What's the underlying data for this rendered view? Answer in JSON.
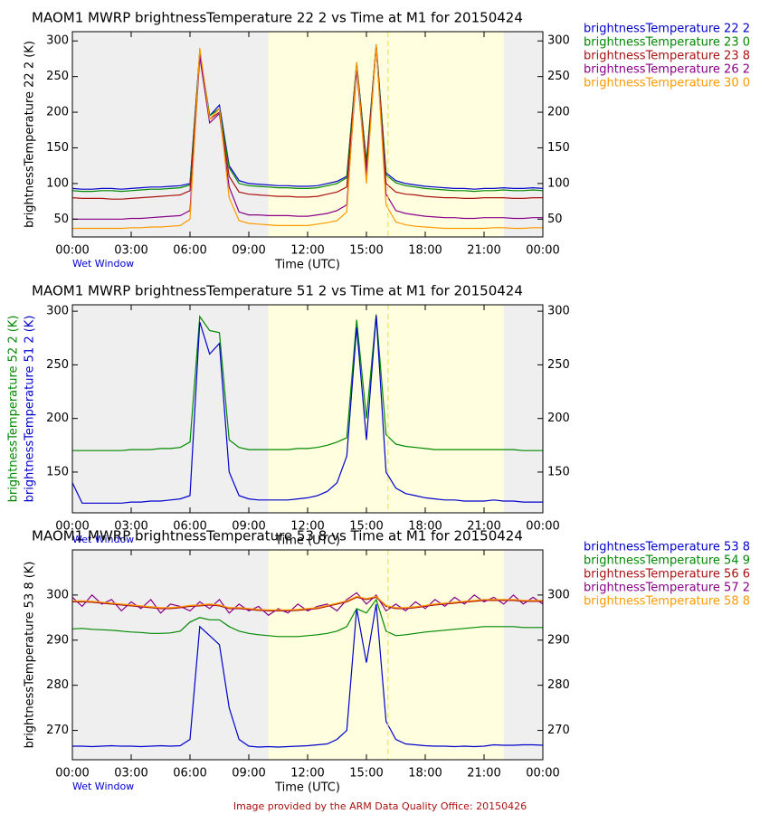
{
  "chart_data": [
    {
      "type": "line",
      "title": "MAOM1 MWRP brightnessTemperature 22 2 vs Time at M1 for 20150424",
      "ylabel": "brightnessTemperature 22 2 (K)",
      "xlabel": "Time (UTC)",
      "note": "Wet Window",
      "legend": true,
      "xlim": [
        0,
        24
      ],
      "xticks": [
        {
          "value": 0,
          "label": "00:00"
        },
        {
          "value": 3,
          "label": "03:00"
        },
        {
          "value": 6,
          "label": "06:00"
        },
        {
          "value": 9,
          "label": "09:00"
        },
        {
          "value": 12,
          "label": "12:00"
        },
        {
          "value": 15,
          "label": "15:00"
        },
        {
          "value": 18,
          "label": "18:00"
        },
        {
          "value": 21,
          "label": "21:00"
        },
        {
          "value": 24,
          "label": "00:00"
        }
      ],
      "ylim": [
        25,
        313
      ],
      "yticks": [
        50,
        100,
        150,
        200,
        250,
        300
      ],
      "shaded_x": [
        10,
        22
      ],
      "vline_x": 16.1,
      "x": [
        0,
        0.5,
        1,
        1.5,
        2,
        2.5,
        3,
        3.5,
        4,
        4.5,
        5,
        5.5,
        6,
        6.5,
        7,
        7.5,
        8,
        8.5,
        9,
        9.5,
        10,
        10.5,
        11,
        11.5,
        12,
        12.5,
        13,
        13.5,
        14,
        14.5,
        15,
        15.5,
        16,
        16.5,
        17,
        17.5,
        18,
        18.5,
        19,
        19.5,
        20,
        20.5,
        21,
        21.5,
        22,
        22.5,
        23,
        23.5,
        24
      ],
      "series": [
        {
          "name": "brightnessTemperature 22 2",
          "color": "#0000cc",
          "values": [
            93,
            92,
            92,
            93,
            93,
            92,
            93,
            94,
            95,
            95,
            96,
            97,
            100,
            285,
            195,
            210,
            125,
            104,
            100,
            99,
            98,
            97,
            97,
            96,
            96,
            97,
            100,
            103,
            110,
            270,
            130,
            295,
            115,
            104,
            100,
            98,
            96,
            95,
            94,
            93,
            93,
            92,
            93,
            93,
            94,
            93,
            93,
            94,
            93
          ]
        },
        {
          "name": "brightnessTemperature 23 0",
          "color": "#008800",
          "values": [
            90,
            89,
            89,
            90,
            90,
            89,
            90,
            91,
            92,
            92,
            93,
            94,
            98,
            285,
            195,
            205,
            122,
            100,
            97,
            96,
            95,
            94,
            94,
            93,
            93,
            94,
            97,
            100,
            108,
            268,
            128,
            294,
            112,
            101,
            97,
            95,
            93,
            92,
            91,
            90,
            90,
            89,
            90,
            90,
            91,
            90,
            90,
            91,
            90
          ]
        },
        {
          "name": "brightnessTemperature 23 8",
          "color": "#aa1111",
          "values": [
            80,
            79,
            79,
            79,
            78,
            78,
            79,
            80,
            81,
            82,
            83,
            84,
            90,
            280,
            190,
            200,
            110,
            88,
            85,
            84,
            83,
            82,
            82,
            81,
            81,
            82,
            85,
            88,
            95,
            265,
            120,
            293,
            100,
            88,
            85,
            84,
            82,
            81,
            80,
            80,
            79,
            79,
            80,
            80,
            80,
            79,
            79,
            80,
            80
          ]
        },
        {
          "name": "brightnessTemperature 26 2",
          "color": "#880088",
          "values": [
            50,
            50,
            50,
            50,
            50,
            50,
            51,
            51,
            52,
            53,
            54,
            55,
            62,
            278,
            185,
            198,
            95,
            60,
            56,
            56,
            55,
            55,
            55,
            54,
            54,
            56,
            58,
            62,
            70,
            260,
            110,
            292,
            85,
            62,
            58,
            56,
            54,
            53,
            52,
            52,
            51,
            51,
            52,
            52,
            52,
            51,
            51,
            52,
            52
          ]
        },
        {
          "name": "brightnessTemperature 30 0",
          "color": "#ff9900",
          "values": [
            37,
            37,
            37,
            37,
            37,
            37,
            38,
            38,
            39,
            39,
            40,
            41,
            50,
            290,
            190,
            205,
            80,
            48,
            44,
            43,
            42,
            41,
            41,
            41,
            41,
            43,
            45,
            48,
            60,
            270,
            100,
            295,
            70,
            46,
            42,
            40,
            39,
            38,
            37,
            37,
            37,
            37,
            37,
            38,
            38,
            37,
            37,
            38,
            38
          ]
        }
      ]
    },
    {
      "type": "line",
      "title": "MAOM1 MWRP brightnessTemperature 51 2 vs Time at M1 for 20150424",
      "ylabels": [
        {
          "text": "brightnessTemperature 52 2 (K)",
          "color": "#008800"
        },
        {
          "text": "brightnessTemperature 51 2 (K)",
          "color": "#0000cc"
        }
      ],
      "xlabel": "Time (UTC)",
      "note": "Wet Window",
      "legend": false,
      "xlim": [
        0,
        24
      ],
      "xticks": [
        {
          "value": 0,
          "label": "00:00"
        },
        {
          "value": 3,
          "label": "03:00"
        },
        {
          "value": 6,
          "label": "06:00"
        },
        {
          "value": 9,
          "label": "09:00"
        },
        {
          "value": 12,
          "label": "12:00"
        },
        {
          "value": 15,
          "label": "15:00"
        },
        {
          "value": 18,
          "label": "18:00"
        },
        {
          "value": 21,
          "label": "21:00"
        },
        {
          "value": 24,
          "label": "00:00"
        }
      ],
      "ylim": [
        112,
        306
      ],
      "yticks": [
        150,
        200,
        250,
        300
      ],
      "shaded_x": [
        10,
        22
      ],
      "vline_x": 16.1,
      "x": [
        0,
        0.5,
        1,
        1.5,
        2,
        2.5,
        3,
        3.5,
        4,
        4.5,
        5,
        5.5,
        6,
        6.5,
        7,
        7.5,
        8,
        8.5,
        9,
        9.5,
        10,
        10.5,
        11,
        11.5,
        12,
        12.5,
        13,
        13.5,
        14,
        14.5,
        15,
        15.5,
        16,
        16.5,
        17,
        17.5,
        18,
        18.5,
        19,
        19.5,
        20,
        20.5,
        21,
        21.5,
        22,
        22.5,
        23,
        23.5,
        24
      ],
      "series": [
        {
          "name": "brightnessTemperature 52 2",
          "color": "#008800",
          "values": [
            170,
            170,
            170,
            170,
            170,
            170,
            171,
            171,
            171,
            172,
            172,
            173,
            178,
            295,
            282,
            280,
            180,
            173,
            171,
            171,
            171,
            171,
            171,
            172,
            172,
            173,
            175,
            178,
            182,
            292,
            200,
            297,
            185,
            176,
            174,
            173,
            172,
            171,
            171,
            171,
            171,
            171,
            171,
            171,
            171,
            171,
            170,
            170,
            170
          ]
        },
        {
          "name": "brightnessTemperature 51 2",
          "color": "#0000cc",
          "values": [
            140,
            121,
            121,
            121,
            121,
            121,
            122,
            122,
            123,
            123,
            124,
            125,
            128,
            290,
            260,
            270,
            150,
            128,
            125,
            124,
            124,
            124,
            124,
            125,
            126,
            128,
            132,
            140,
            165,
            285,
            180,
            296,
            150,
            135,
            130,
            128,
            126,
            125,
            124,
            124,
            123,
            123,
            123,
            124,
            123,
            123,
            122,
            122,
            122
          ]
        }
      ]
    },
    {
      "type": "line",
      "title": "MAOM1 MWRP brightnessTemperature 53 8 vs Time at M1 for 20150424",
      "ylabel": "brightnessTemperature 53 8 (K)",
      "xlabel": "Time (UTC)",
      "note": "Wet Window",
      "legend": true,
      "xlim": [
        0,
        24
      ],
      "xticks": [
        {
          "value": 0,
          "label": "00:00"
        },
        {
          "value": 3,
          "label": "03:00"
        },
        {
          "value": 6,
          "label": "06:00"
        },
        {
          "value": 9,
          "label": "09:00"
        },
        {
          "value": 12,
          "label": "12:00"
        },
        {
          "value": 15,
          "label": "15:00"
        },
        {
          "value": 18,
          "label": "18:00"
        },
        {
          "value": 21,
          "label": "21:00"
        },
        {
          "value": 24,
          "label": "00:00"
        }
      ],
      "ylim": [
        263.5,
        310
      ],
      "yticks": [
        270,
        280,
        290,
        300
      ],
      "shaded_x": [
        10,
        22
      ],
      "vline_x": 16.1,
      "x": [
        0,
        0.5,
        1,
        1.5,
        2,
        2.5,
        3,
        3.5,
        4,
        4.5,
        5,
        5.5,
        6,
        6.5,
        7,
        7.5,
        8,
        8.5,
        9,
        9.5,
        10,
        10.5,
        11,
        11.5,
        12,
        12.5,
        13,
        13.5,
        14,
        14.5,
        15,
        15.5,
        16,
        16.5,
        17,
        17.5,
        18,
        18.5,
        19,
        19.5,
        20,
        20.5,
        21,
        21.5,
        22,
        22.5,
        23,
        23.5,
        24
      ],
      "series": [
        {
          "name": "brightnessTemperature 53 8",
          "color": "#0000cc",
          "values": [
            266.5,
            266.5,
            266.4,
            266.5,
            266.6,
            266.5,
            266.5,
            266.4,
            266.5,
            266.6,
            266.5,
            266.6,
            268,
            293,
            291,
            289,
            275,
            268,
            266.5,
            266.3,
            266.4,
            266.3,
            266.4,
            266.5,
            266.6,
            266.8,
            267,
            268,
            270,
            297,
            285,
            298,
            272,
            268,
            267,
            266.8,
            266.6,
            266.5,
            266.5,
            266.4,
            266.5,
            266.4,
            266.5,
            266.8,
            266.7,
            266.7,
            266.8,
            266.8,
            266.7
          ]
        },
        {
          "name": "brightnessTemperature 54 9",
          "color": "#008800",
          "values": [
            292.5,
            292.6,
            292.4,
            292.3,
            292.2,
            292,
            291.8,
            291.7,
            291.5,
            291.5,
            291.6,
            292,
            294,
            295,
            294.5,
            294.5,
            293,
            292,
            291.5,
            291.2,
            291,
            290.8,
            290.8,
            290.8,
            291,
            291.2,
            291.5,
            292,
            293,
            297,
            296,
            299,
            292,
            291,
            291.2,
            291.5,
            291.8,
            292,
            292.2,
            292.4,
            292.6,
            292.8,
            293,
            293,
            293,
            293,
            292.8,
            292.8,
            292.8
          ]
        },
        {
          "name": "brightnessTemperature 56 6",
          "color": "#aa1111",
          "values": [
            298.5,
            298.5,
            298.4,
            298.2,
            298,
            297.8,
            297.6,
            297.4,
            297.2,
            297,
            297,
            297.2,
            297.5,
            297.6,
            297.8,
            297.6,
            297,
            297,
            296.8,
            296.6,
            296.5,
            296.5,
            296.5,
            296.6,
            296.8,
            297,
            297.5,
            298,
            298.5,
            299.5,
            299,
            299.5,
            297.5,
            297,
            297,
            297.2,
            297.5,
            297.8,
            298,
            298.2,
            298.4,
            298.6,
            298.8,
            298.8,
            298.8,
            298.8,
            298.6,
            298.6,
            298.6
          ]
        },
        {
          "name": "brightnessTemperature 57 2",
          "color": "#880088",
          "values": [
            299.5,
            297.5,
            300,
            298,
            299,
            296.5,
            298.5,
            297,
            299,
            296,
            298,
            297.5,
            296.5,
            298.5,
            297,
            299,
            296,
            298,
            296.5,
            297.5,
            295.5,
            297,
            296,
            298,
            296.5,
            297.5,
            298,
            296.5,
            299,
            300.5,
            298,
            300,
            296.5,
            298,
            296.5,
            298.5,
            297,
            299,
            297.5,
            299.5,
            298,
            300,
            298.5,
            299.5,
            298,
            300,
            298,
            299.5,
            298
          ]
        },
        {
          "name": "brightnessTemperature 58 8",
          "color": "#ff9900",
          "values": [
            298.7,
            298.7,
            298.6,
            298.4,
            298.2,
            298,
            297.8,
            297.6,
            297.4,
            297.2,
            297.2,
            297.4,
            297.7,
            297.8,
            298,
            297.8,
            297.2,
            297.2,
            297,
            296.8,
            296.7,
            296.7,
            296.7,
            296.8,
            297,
            297.2,
            297.7,
            298.2,
            298.7,
            299.7,
            299.2,
            299.7,
            297.7,
            297.2,
            297.2,
            297.4,
            297.7,
            298,
            298.2,
            298.4,
            298.6,
            298.8,
            299,
            299,
            299,
            299,
            298.8,
            298.8,
            298.8
          ]
        }
      ]
    }
  ],
  "footer": "Image provided by the ARM Data Quality Office: 20150426"
}
